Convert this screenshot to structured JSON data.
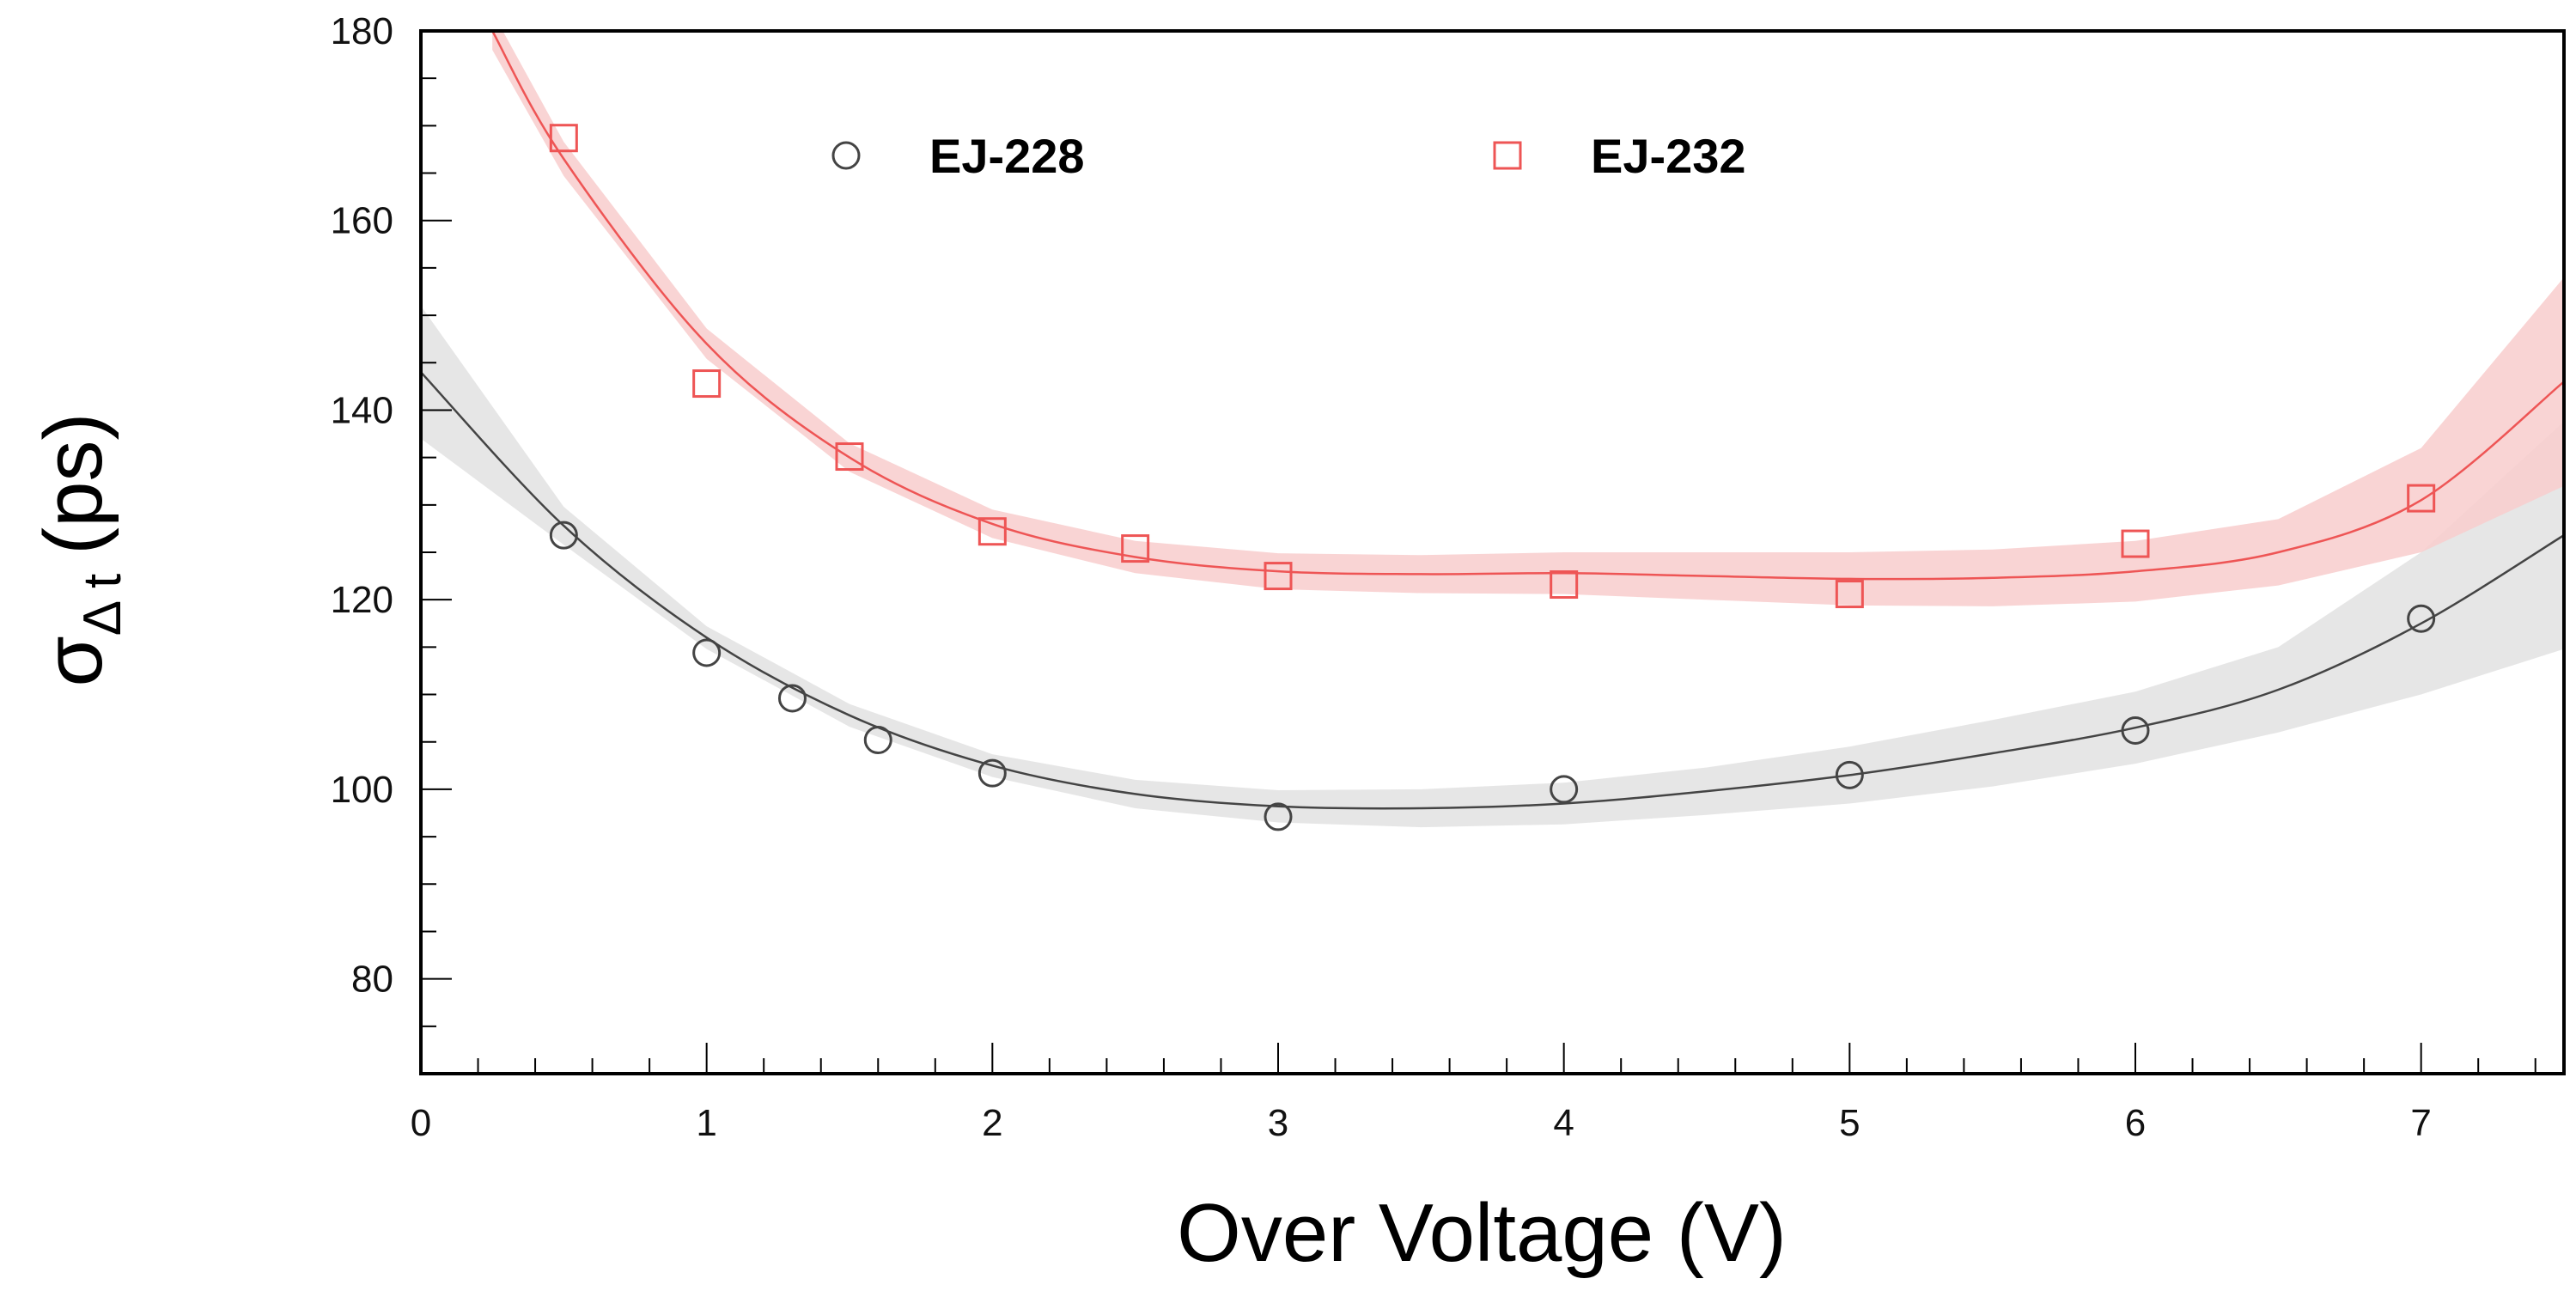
{
  "chart_data": {
    "type": "scatter",
    "xlabel": "Over Voltage (V)",
    "ylabel": "σ",
    "ylabel_subscript": "Δ t",
    "ylabel_unit": "(ps)",
    "xlim": [
      0,
      7.5
    ],
    "ylim": [
      70,
      180
    ],
    "xticks": [
      0,
      1,
      2,
      3,
      4,
      5,
      6,
      7
    ],
    "yticks": [
      80,
      100,
      120,
      140,
      160,
      180
    ],
    "colors": {
      "EJ-228": "#444444",
      "EJ-232": "#ee5555",
      "EJ-228-band": "#e2e2e2",
      "EJ-232-band": "#f8cccc"
    },
    "legend_position": "top",
    "series": [
      {
        "name": "EJ-228",
        "marker": "circle",
        "points": [
          {
            "x": 0.5,
            "y": 126.8
          },
          {
            "x": 1.0,
            "y": 114.4
          },
          {
            "x": 1.3,
            "y": 109.6
          },
          {
            "x": 1.6,
            "y": 105.2
          },
          {
            "x": 2.0,
            "y": 101.7
          },
          {
            "x": 3.0,
            "y": 97.1
          },
          {
            "x": 4.0,
            "y": 100.0
          },
          {
            "x": 5.0,
            "y": 101.5
          },
          {
            "x": 6.0,
            "y": 106.2
          },
          {
            "x": 7.0,
            "y": 118.0
          }
        ],
        "fit": {
          "x": [
            0,
            0.5,
            1,
            1.5,
            2,
            2.5,
            3,
            3.5,
            4,
            4.5,
            5,
            5.5,
            6,
            6.5,
            7,
            7.5
          ],
          "y": [
            144.0,
            127.8,
            116.0,
            107.8,
            102.5,
            99.5,
            98.2,
            98.0,
            98.5,
            99.8,
            101.5,
            103.8,
            106.5,
            110.5,
            117.5,
            126.8
          ],
          "band_half_width": [
            7.0,
            2.0,
            1.2,
            1.2,
            1.2,
            1.5,
            1.7,
            2.0,
            2.2,
            2.5,
            3.0,
            3.5,
            3.8,
            4.5,
            7.5,
            12.0
          ]
        }
      },
      {
        "name": "EJ-232",
        "marker": "square",
        "points": [
          {
            "x": 0.5,
            "y": 168.7
          },
          {
            "x": 1.0,
            "y": 142.8
          },
          {
            "x": 1.5,
            "y": 135.1
          },
          {
            "x": 2.0,
            "y": 127.2
          },
          {
            "x": 2.5,
            "y": 125.4
          },
          {
            "x": 3.0,
            "y": 122.5
          },
          {
            "x": 4.0,
            "y": 121.6
          },
          {
            "x": 5.0,
            "y": 120.6
          },
          {
            "x": 6.0,
            "y": 125.9
          },
          {
            "x": 7.0,
            "y": 130.7
          }
        ],
        "fit": {
          "x": [
            0.25,
            0.5,
            1,
            1.5,
            2,
            2.5,
            3,
            3.5,
            4,
            4.5,
            5,
            5.5,
            6,
            6.5,
            7,
            7.5
          ],
          "y": [
            180.0,
            166.5,
            147.0,
            135.0,
            128.0,
            124.5,
            123.0,
            122.7,
            122.8,
            122.5,
            122.2,
            122.3,
            123.0,
            125.0,
            130.5,
            143.0
          ],
          "band_half_width": [
            2.0,
            1.8,
            1.6,
            1.5,
            1.5,
            1.7,
            1.9,
            2.0,
            2.2,
            2.5,
            2.8,
            3.0,
            3.2,
            3.5,
            5.5,
            11.0
          ]
        }
      }
    ]
  }
}
